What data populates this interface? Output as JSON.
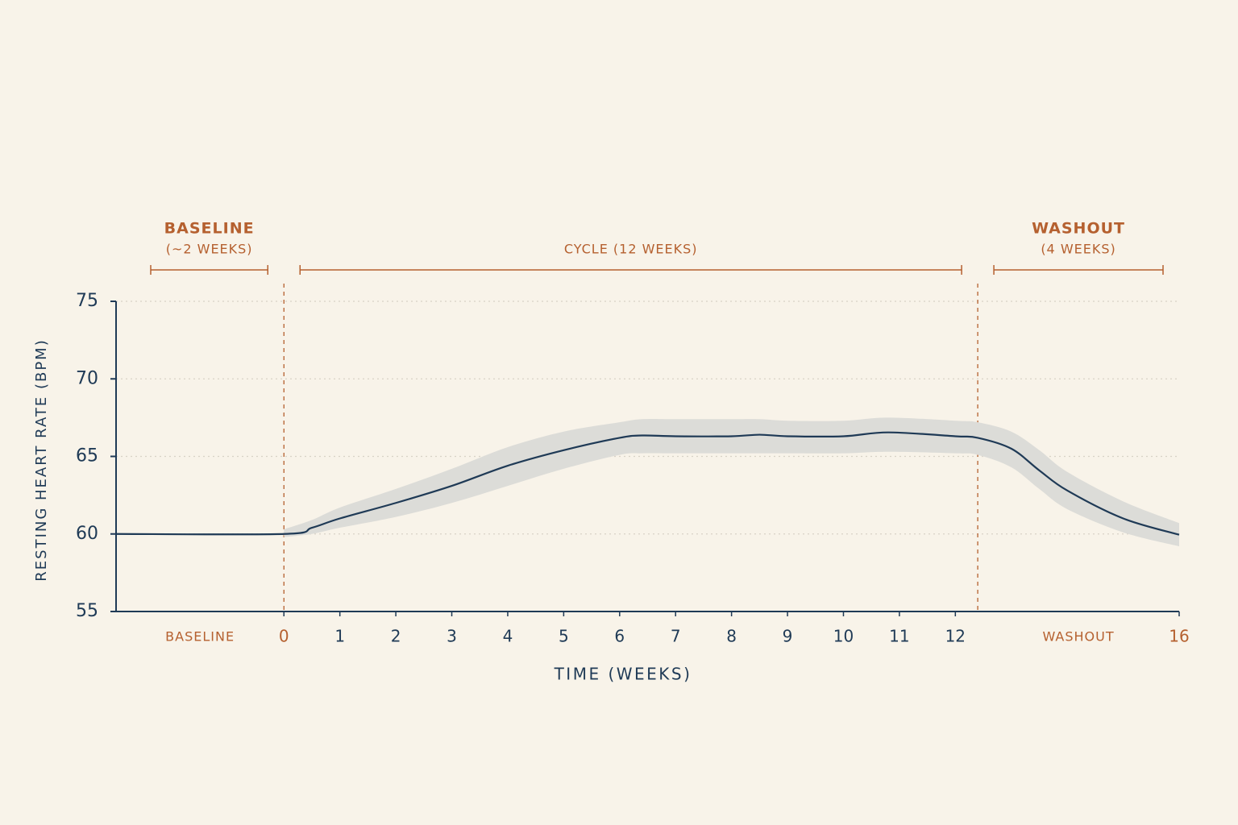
{
  "chart_data": {
    "type": "line",
    "x_label": "TIME (WEEKS)",
    "y_label": "RESTING HEART RATE (BPM)",
    "xlim": [
      -3,
      16
    ],
    "ylim": [
      55,
      75
    ],
    "xticks": [
      {
        "value": -1.5,
        "label": "BASELINE"
      },
      0,
      1,
      2,
      3,
      4,
      5,
      6,
      7,
      8,
      9,
      10,
      11,
      12,
      {
        "value": 14.2,
        "label": "WASHOUT"
      },
      16
    ],
    "yticks": [
      55,
      60,
      65,
      70,
      75
    ],
    "grid": true,
    "phase_boundaries": [
      0,
      12.4
    ],
    "phases": [
      {
        "label": "BASELINE",
        "note": "(~2 WEEKS)"
      },
      {
        "note": "CYCLE (12 WEEKS)"
      },
      {
        "label": "WASHOUT",
        "note": "(4 WEEKS)"
      }
    ],
    "x": [
      -3,
      0,
      0.5,
      1,
      2,
      3,
      4,
      5,
      6,
      6.4,
      7,
      8,
      8.5,
      9,
      10,
      10.8,
      12,
      12.4,
      13,
      13.5,
      14,
      15,
      16
    ],
    "series": [
      {
        "color": "#1f3a56",
        "band_color": "#dcdcd8",
        "values": [
          60,
          60,
          60.4,
          61,
          62,
          63.1,
          64.4,
          65.4,
          66.2,
          66.35,
          66.3,
          66.3,
          66.4,
          66.3,
          66.3,
          66.55,
          66.3,
          66.2,
          65.5,
          64.1,
          62.8,
          61.0,
          59.95
        ],
        "band": {
          "lower": [
            null,
            59.8,
            60,
            60.4,
            61.1,
            62,
            63.1,
            64.2,
            65.1,
            65.2,
            65.2,
            65.2,
            65.2,
            65.2,
            65.2,
            65.3,
            65.2,
            65.1,
            64.3,
            62.9,
            61.6,
            60.1,
            59.2
          ],
          "upper": [
            null,
            60.3,
            60.9,
            61.7,
            62.9,
            64.2,
            65.6,
            66.6,
            67.2,
            67.4,
            67.4,
            67.4,
            67.4,
            67.3,
            67.3,
            67.5,
            67.3,
            67.2,
            66.6,
            65.4,
            64.0,
            62.1,
            60.7
          ]
        }
      }
    ]
  }
}
